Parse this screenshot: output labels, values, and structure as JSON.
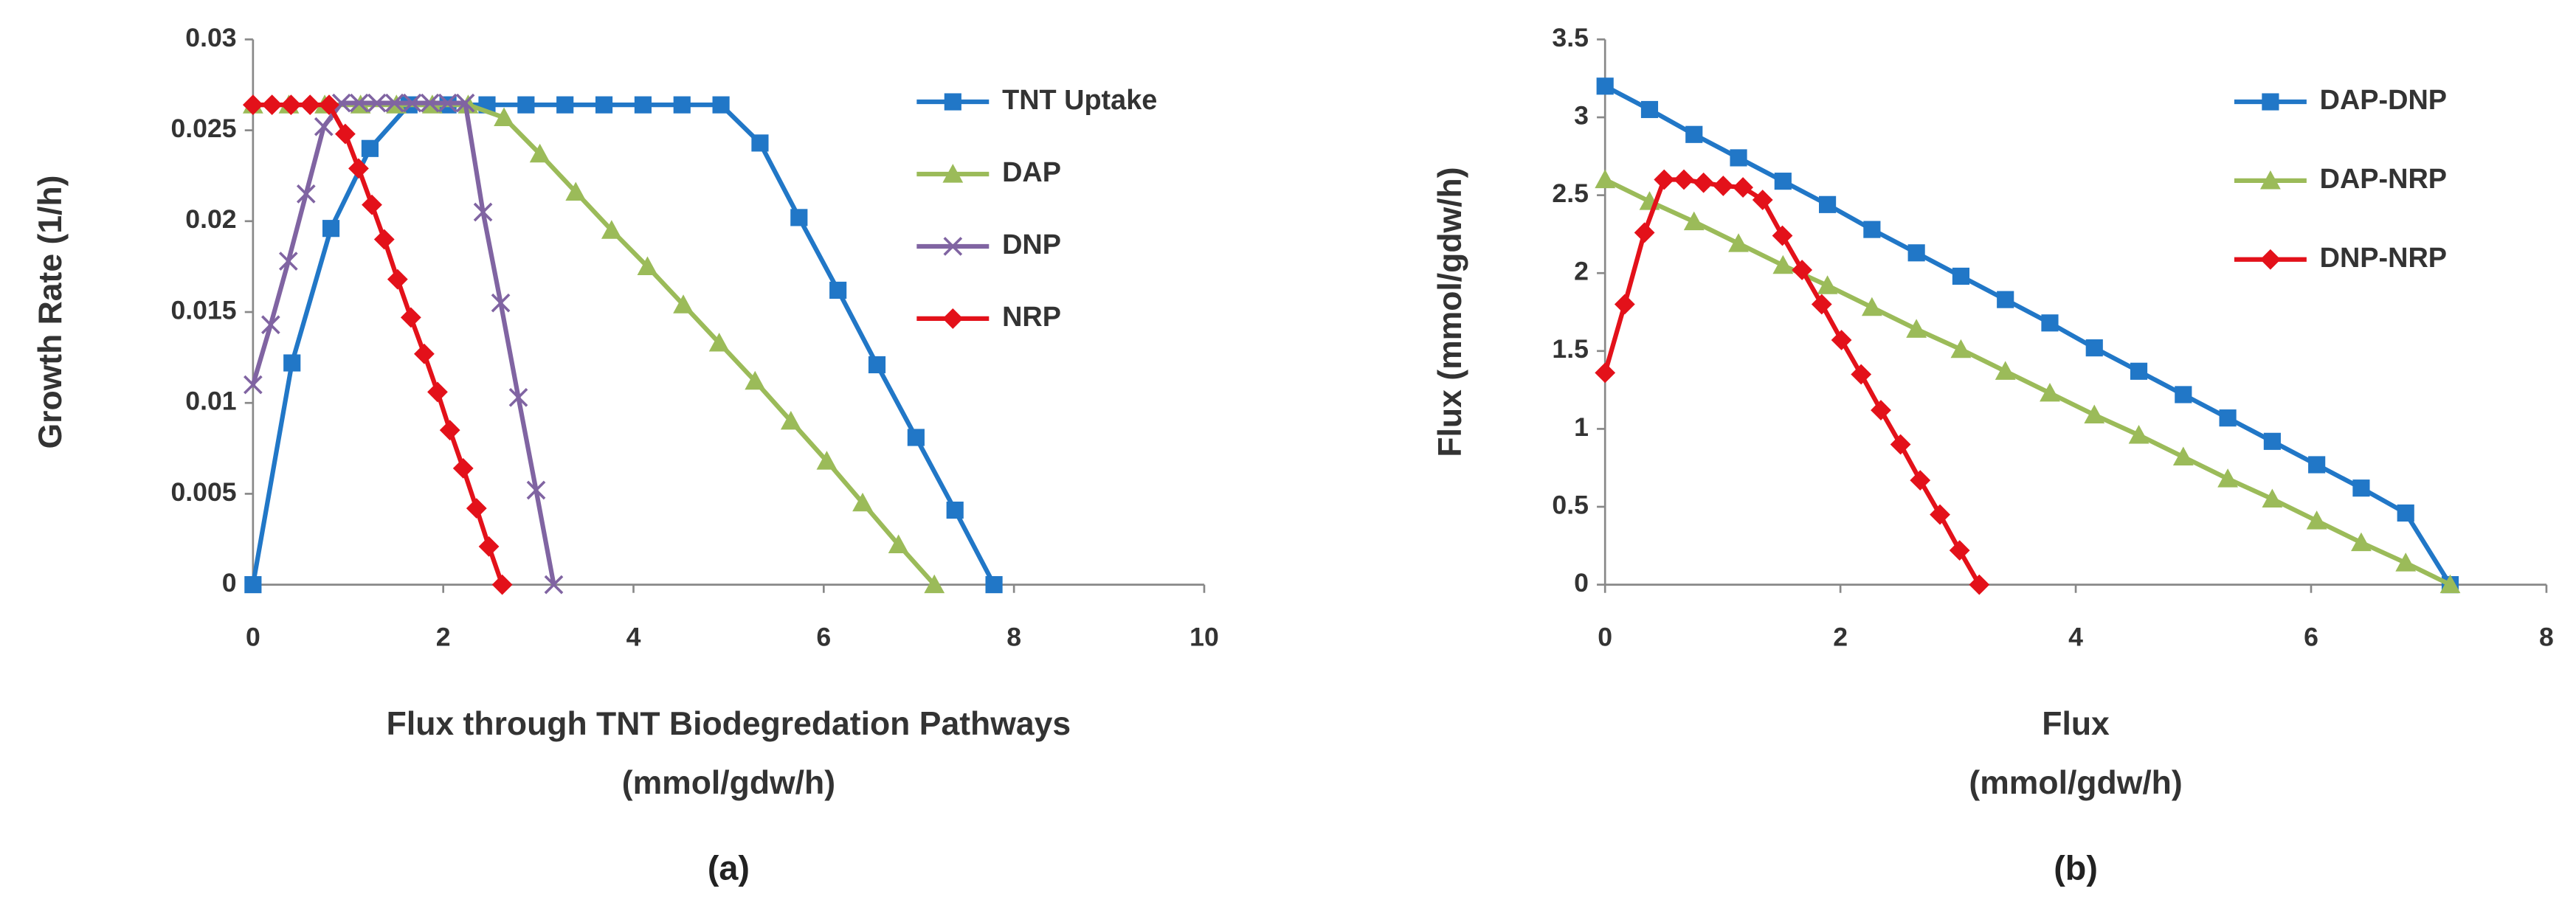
{
  "chart_data": [
    {
      "type": "line",
      "xlabel": [
        "Flux through TNT Biodegredation Pathways",
        "(mmol/gdw/h)"
      ],
      "ylabel": "Growth Rate (1/h)",
      "caption": "(a)",
      "xlim": [
        0,
        10
      ],
      "xticks": [
        0,
        2,
        4,
        6,
        8,
        10
      ],
      "ylim": [
        0,
        0.03
      ],
      "yticks": [
        0,
        0.005,
        0.01,
        0.015,
        0.02,
        0.025,
        0.03
      ],
      "legend": "upper right",
      "series": [
        {
          "name": "TNT Uptake",
          "color": "#2177c7",
          "marker": "square",
          "x": [
            0,
            0.41,
            0.82,
            1.23,
            1.64,
            2.05,
            2.46,
            2.87,
            3.28,
            3.69,
            4.1,
            4.51,
            4.92,
            5.33,
            5.74,
            6.15,
            6.56,
            6.97,
            7.38,
            7.79
          ],
          "values": [
            0,
            0.0122,
            0.0196,
            0.024,
            0.0264,
            0.0264,
            0.0264,
            0.0264,
            0.0264,
            0.0264,
            0.0264,
            0.0264,
            0.0264,
            0.0243,
            0.0202,
            0.0162,
            0.0121,
            0.0081,
            0.0041,
            0
          ]
        },
        {
          "name": "DAP",
          "color": "#9bbb59",
          "marker": "triangle",
          "x": [
            0,
            0.377,
            0.754,
            1.131,
            1.508,
            1.885,
            2.262,
            2.639,
            3.016,
            3.393,
            3.77,
            4.147,
            4.524,
            4.901,
            5.278,
            5.655,
            6.032,
            6.409,
            6.786,
            7.163
          ],
          "values": [
            0.0264,
            0.0264,
            0.0264,
            0.0264,
            0.0264,
            0.0264,
            0.0264,
            0.0257,
            0.0237,
            0.0216,
            0.0195,
            0.0175,
            0.0154,
            0.0133,
            0.0112,
            0.009,
            0.0068,
            0.0045,
            0.0022,
            0
          ]
        },
        {
          "name": "DNP",
          "color": "#8064a2",
          "marker": "x",
          "x": [
            0,
            0.186,
            0.372,
            0.558,
            0.744,
            0.93,
            1.116,
            1.302,
            1.488,
            1.674,
            1.86,
            2.046,
            2.232,
            2.418,
            2.604,
            2.79,
            2.976,
            3.162
          ],
          "values": [
            0.011,
            0.0143,
            0.0178,
            0.0215,
            0.0252,
            0.0265,
            0.0265,
            0.0265,
            0.0265,
            0.0265,
            0.0265,
            0.0265,
            0.0265,
            0.0205,
            0.0155,
            0.0103,
            0.0052,
            0
          ]
        },
        {
          "name": "NRP",
          "color": "#e3111a",
          "marker": "diamond",
          "x": [
            0,
            0.2,
            0.4,
            0.6,
            0.8,
            0.97,
            1.11,
            1.25,
            1.38,
            1.52,
            1.66,
            1.8,
            1.94,
            2.07,
            2.21,
            2.35,
            2.48,
            2.62
          ],
          "values": [
            0.0264,
            0.0264,
            0.0264,
            0.0264,
            0.0264,
            0.0248,
            0.0229,
            0.0209,
            0.019,
            0.0168,
            0.0147,
            0.0127,
            0.0106,
            0.0085,
            0.0064,
            0.0042,
            0.0021,
            0
          ]
        }
      ]
    },
    {
      "type": "line",
      "xlabel": [
        "Flux",
        "(mmol/gdw/h)"
      ],
      "ylabel": "Flux (mmol/gdw/h)",
      "caption": "(b)",
      "xlim": [
        0,
        8
      ],
      "xticks": [
        0,
        2,
        4,
        6,
        8
      ],
      "ylim": [
        0,
        3.5
      ],
      "yticks": [
        0,
        0.5,
        1,
        1.5,
        2,
        2.5,
        3,
        3.5
      ],
      "legend": "upper right",
      "series": [
        {
          "name": "DAP-DNP",
          "color": "#2177c7",
          "marker": "square",
          "x": [
            0,
            0.378,
            0.756,
            1.134,
            1.512,
            1.89,
            2.268,
            2.646,
            3.024,
            3.402,
            3.78,
            4.158,
            4.536,
            4.914,
            5.292,
            5.67,
            6.048,
            6.426,
            6.804,
            7.182
          ],
          "values": [
            3.2,
            3.05,
            2.89,
            2.74,
            2.59,
            2.44,
            2.28,
            2.13,
            1.98,
            1.83,
            1.68,
            1.52,
            1.37,
            1.22,
            1.07,
            0.92,
            0.77,
            0.62,
            0.46,
            0
          ]
        },
        {
          "name": "DAP-NRP",
          "color": "#9bbb59",
          "marker": "triangle",
          "x": [
            0,
            0.378,
            0.756,
            1.134,
            1.512,
            1.89,
            2.268,
            2.646,
            3.024,
            3.402,
            3.78,
            4.158,
            4.536,
            4.914,
            5.292,
            5.67,
            6.048,
            6.426,
            6.804,
            7.182
          ],
          "values": [
            2.6,
            2.46,
            2.33,
            2.19,
            2.05,
            1.92,
            1.78,
            1.64,
            1.51,
            1.37,
            1.23,
            1.09,
            0.96,
            0.82,
            0.68,
            0.55,
            0.41,
            0.27,
            0.14,
            0
          ]
        },
        {
          "name": "DNP-NRP",
          "color": "#e3111a",
          "marker": "diamond",
          "x": [
            0,
            0.167,
            0.335,
            0.502,
            0.67,
            0.837,
            1.004,
            1.172,
            1.339,
            1.507,
            1.674,
            1.841,
            2.009,
            2.176,
            2.344,
            2.511,
            2.678,
            2.846,
            3.013,
            3.18
          ],
          "values": [
            1.36,
            1.8,
            2.26,
            2.6,
            2.6,
            2.58,
            2.56,
            2.55,
            2.47,
            2.24,
            2.02,
            1.8,
            1.57,
            1.35,
            1.12,
            0.9,
            0.67,
            0.45,
            0.22,
            0
          ]
        }
      ]
    }
  ]
}
